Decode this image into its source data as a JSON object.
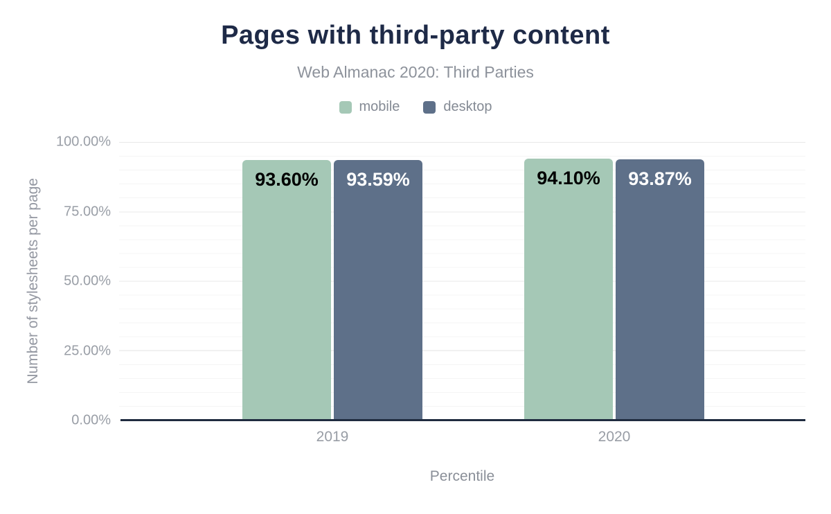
{
  "chart_data": {
    "type": "bar",
    "title": "Pages with third-party content",
    "subtitle": "Web Almanac 2020: Third Parties",
    "categories": [
      "2019",
      "2020"
    ],
    "series": [
      {
        "name": "mobile",
        "color": "#a5c8b6",
        "label_color": "#000000",
        "values": [
          93.6,
          94.1
        ],
        "value_labels": [
          "93.60%",
          "94.10%"
        ]
      },
      {
        "name": "desktop",
        "color": "#5e7089",
        "label_color": "#ffffff",
        "values": [
          93.59,
          93.87
        ],
        "value_labels": [
          "93.59%",
          "93.87%"
        ]
      }
    ],
    "xlabel": "Percentile",
    "ylabel": "Number of stylesheets per page",
    "ylim": [
      0,
      100
    ],
    "yticks": [
      {
        "value": 0,
        "label": "0.00%"
      },
      {
        "value": 25,
        "label": "25.00%"
      },
      {
        "value": 50,
        "label": "50.00%"
      },
      {
        "value": 75,
        "label": "75.00%"
      },
      {
        "value": 100,
        "label": "100.00%"
      }
    ],
    "grid": {
      "minor_step_percent": 5,
      "major_step_percent": 25,
      "visible": true
    },
    "legend_position": "top",
    "colors": {
      "title": "#1e2a47",
      "subtitle": "#8d929b",
      "axis_line": "#1f2b3f",
      "tick_label": "#999ea6",
      "major_grid": "#e8e8e8",
      "minor_grid": "#f4f4f4"
    }
  }
}
